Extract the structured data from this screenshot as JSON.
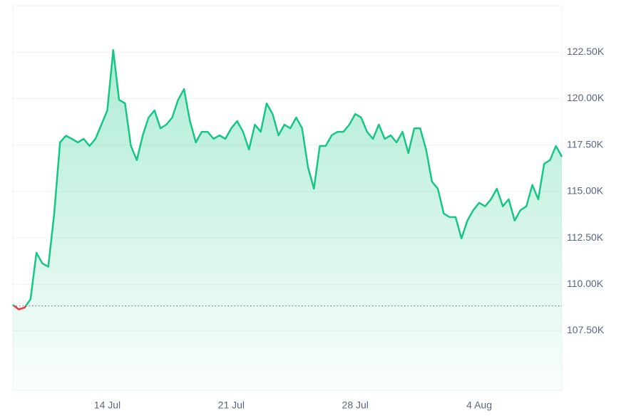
{
  "chart_data": {
    "type": "line",
    "categories": [
      null,
      null,
      null,
      null,
      null,
      null,
      null,
      null,
      null,
      null,
      null,
      null,
      null,
      null,
      null,
      null,
      "14 Jul",
      null,
      null,
      null,
      null,
      null,
      null,
      null,
      null,
      null,
      null,
      null,
      null,
      null,
      null,
      null,
      null,
      null,
      null,
      null,
      null,
      "21 Jul",
      null,
      null,
      null,
      null,
      null,
      null,
      null,
      null,
      null,
      null,
      null,
      null,
      null,
      null,
      null,
      null,
      null,
      null,
      null,
      null,
      "28 Jul",
      null,
      null,
      null,
      null,
      null,
      null,
      null,
      null,
      null,
      null,
      null,
      null,
      null,
      null,
      null,
      null,
      null,
      null,
      null,
      null,
      "4 Aug",
      null,
      null,
      null,
      null,
      null,
      null,
      null,
      null,
      null,
      null,
      null,
      null,
      null,
      null
    ],
    "values": [
      108900,
      108650,
      108750,
      109200,
      111700,
      111130,
      110950,
      113800,
      117640,
      118000,
      117830,
      117640,
      117830,
      117450,
      117830,
      118600,
      119360,
      122610,
      119930,
      119750,
      117450,
      116690,
      118020,
      118980,
      119360,
      118400,
      118600,
      118980,
      119930,
      120510,
      118790,
      117640,
      118210,
      118210,
      117830,
      118020,
      117830,
      118400,
      118790,
      118210,
      117260,
      118600,
      118210,
      119740,
      119170,
      118020,
      118600,
      118400,
      118980,
      118400,
      116300,
      115150,
      117450,
      117450,
      118020,
      118210,
      118210,
      118600,
      119170,
      118980,
      118210,
      117830,
      118600,
      117830,
      118020,
      117640,
      118210,
      117070,
      118400,
      118400,
      117260,
      115530,
      115150,
      113810,
      113620,
      113620,
      112470,
      113430,
      114000,
      114390,
      114200,
      114580,
      115150,
      114200,
      114580,
      113430,
      114000,
      114200,
      115350,
      114580,
      116490,
      116690,
      117450,
      116870
    ],
    "color": "#16c784",
    "negative_color": "#ea3943",
    "baseline": 108840,
    "ylim": [
      104300,
      125000
    ],
    "yticks": [
      {
        "value": 107500,
        "label": "107.50K"
      },
      {
        "value": 110000,
        "label": "110.00K"
      },
      {
        "value": 112500,
        "label": "112.50K"
      },
      {
        "value": 115000,
        "label": "115.00K"
      },
      {
        "value": 117500,
        "label": "117.50K"
      },
      {
        "value": 120000,
        "label": "120.00K"
      },
      {
        "value": 122500,
        "label": "122.50K"
      }
    ],
    "grid": true
  }
}
